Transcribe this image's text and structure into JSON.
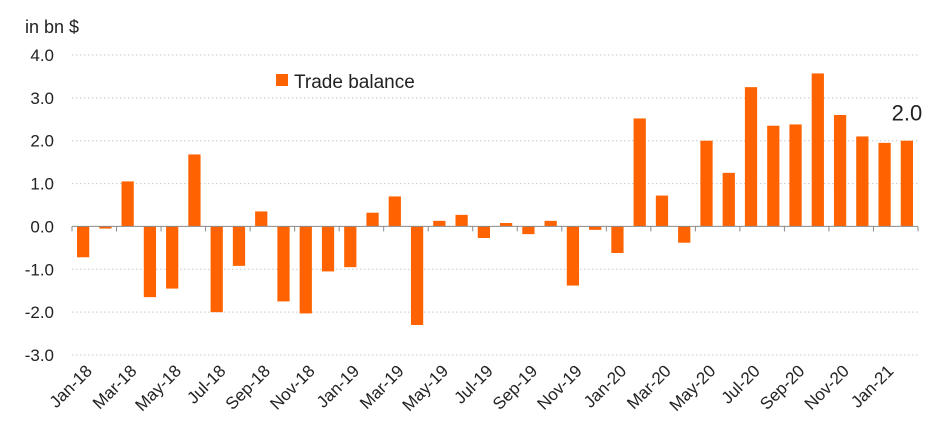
{
  "chart_data": {
    "type": "bar",
    "unit_label": "in bn $",
    "categories": [
      "Jan-18",
      "Feb-18",
      "Mar-18",
      "Apr-18",
      "May-18",
      "Jun-18",
      "Jul-18",
      "Aug-18",
      "Sep-18",
      "Oct-18",
      "Nov-18",
      "Dec-18",
      "Jan-19",
      "Feb-19",
      "Mar-19",
      "Apr-19",
      "May-19",
      "Jun-19",
      "Jul-19",
      "Aug-19",
      "Sep-19",
      "Oct-19",
      "Nov-19",
      "Dec-19",
      "Jan-20",
      "Feb-20",
      "Mar-20",
      "Apr-20",
      "May-20",
      "Jun-20",
      "Jul-20",
      "Aug-20",
      "Sep-20",
      "Oct-20",
      "Nov-20",
      "Dec-20",
      "Jan-21",
      "Feb-21"
    ],
    "tick_labels": [
      "Jan-18",
      "Mar-18",
      "May-18",
      "Jul-18",
      "Sep-18",
      "Nov-18",
      "Jan-19",
      "Mar-19",
      "May-19",
      "Jul-19",
      "Sep-19",
      "Nov-19",
      "Jan-20",
      "Mar-20",
      "May-20",
      "Jul-20",
      "Sep-20",
      "Nov-20",
      "Jan-21"
    ],
    "series": [
      {
        "name": "Trade balance",
        "color": "#ff6200",
        "values": [
          -0.72,
          -0.05,
          1.05,
          -1.65,
          -1.45,
          1.68,
          -2.0,
          -0.92,
          0.35,
          -1.75,
          -2.03,
          -1.05,
          -0.95,
          0.32,
          0.7,
          -2.3,
          0.13,
          0.27,
          -0.27,
          0.08,
          -0.18,
          0.13,
          -1.38,
          -0.08,
          -0.62,
          2.52,
          0.72,
          -0.38,
          2.0,
          1.25,
          3.25,
          2.35,
          2.38,
          3.57,
          2.6,
          2.1,
          1.95,
          2.0
        ]
      }
    ],
    "ylim": [
      -3.0,
      4.0
    ],
    "yticks": [
      "4.0",
      "3.0",
      "2.0",
      "1.0",
      "0.0",
      "-1.0",
      "-2.0",
      "-3.0"
    ],
    "ytick_values": [
      4,
      3,
      2,
      1,
      0,
      -1,
      -2,
      -3
    ],
    "grid": true,
    "legend_position": "top-left",
    "annotation": {
      "text": "2.0",
      "category": "Feb-21"
    }
  }
}
